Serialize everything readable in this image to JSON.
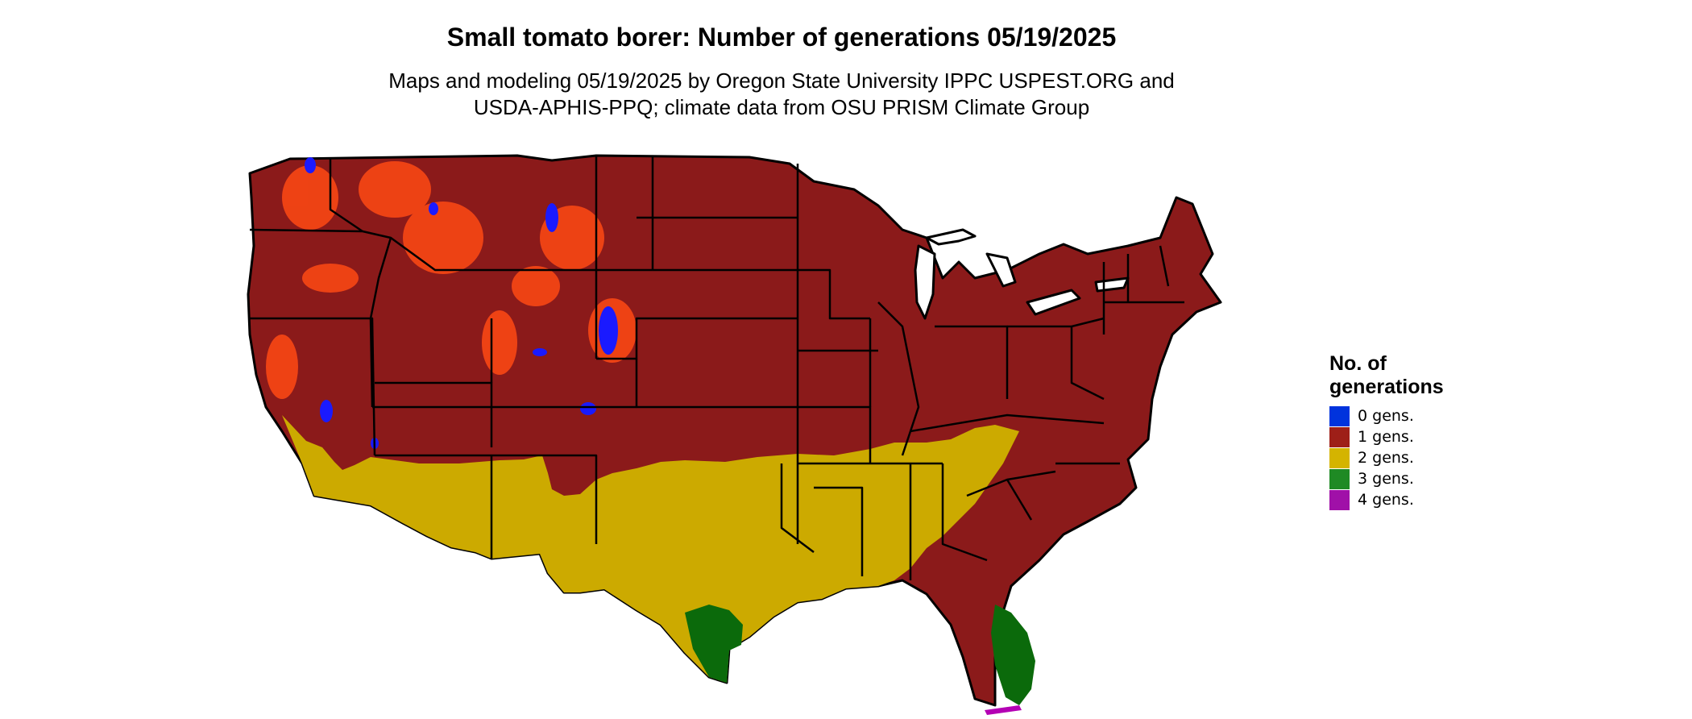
{
  "title_line": "Small tomato borer: Number of generations 05/19/2025",
  "subtitle_line1": "Maps and modeling 05/19/2025 by Oregon State University IPPC USPEST.ORG and",
  "subtitle_line2": "USDA-APHIS-PPQ; climate data from OSU PRISM Climate Group",
  "legend": {
    "title_line1": "No. of",
    "title_line2": "generations",
    "items": [
      {
        "label": "0 gens.",
        "color": "#0033dd"
      },
      {
        "label": "1 gens.",
        "color": "#9e1f18"
      },
      {
        "label": "2 gens.",
        "color": "#d4b400"
      },
      {
        "label": "3 gens.",
        "color": "#1f8a24"
      },
      {
        "label": "4 gens.",
        "color": "#a010a8"
      }
    ]
  },
  "map_colors": {
    "one_gen": "#8b1a1a",
    "highland": "#ff4a14",
    "two_gen": "#ccaa00",
    "three_gen": "#0b6a0b",
    "zero_gen": "#1a1aff",
    "four_gen": "#b400b4",
    "border": "#000000",
    "water": "#ffffff"
  }
}
